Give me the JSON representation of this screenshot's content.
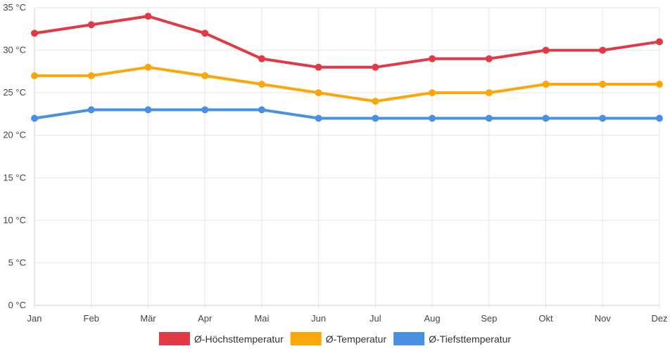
{
  "chart_data": {
    "type": "line",
    "title": "",
    "xlabel": "",
    "ylabel": "",
    "categories": [
      "Jan",
      "Feb",
      "Mär",
      "Apr",
      "Mai",
      "Jun",
      "Jul",
      "Aug",
      "Sep",
      "Okt",
      "Nov",
      "Dez"
    ],
    "y_unit": "°C",
    "ylim": [
      0,
      35
    ],
    "y_ticks": [
      0,
      5,
      10,
      15,
      20,
      25,
      30,
      35
    ],
    "grid": true,
    "legend_position": "bottom",
    "series": [
      {
        "name": "Ø-Höchsttemperatur",
        "color": "#e03a46",
        "values": [
          32,
          33,
          34,
          32,
          29,
          28,
          28,
          29,
          29,
          30,
          30,
          31
        ]
      },
      {
        "name": "Ø-Temperatur",
        "color": "#fba60b",
        "values": [
          27,
          27,
          28,
          27,
          26,
          25,
          24,
          25,
          25,
          26,
          26,
          26
        ]
      },
      {
        "name": "Ø-Tiefsttemperatur",
        "color": "#4a90e2",
        "values": [
          22,
          23,
          23,
          23,
          23,
          22,
          22,
          22,
          22,
          22,
          22,
          22
        ]
      }
    ]
  }
}
